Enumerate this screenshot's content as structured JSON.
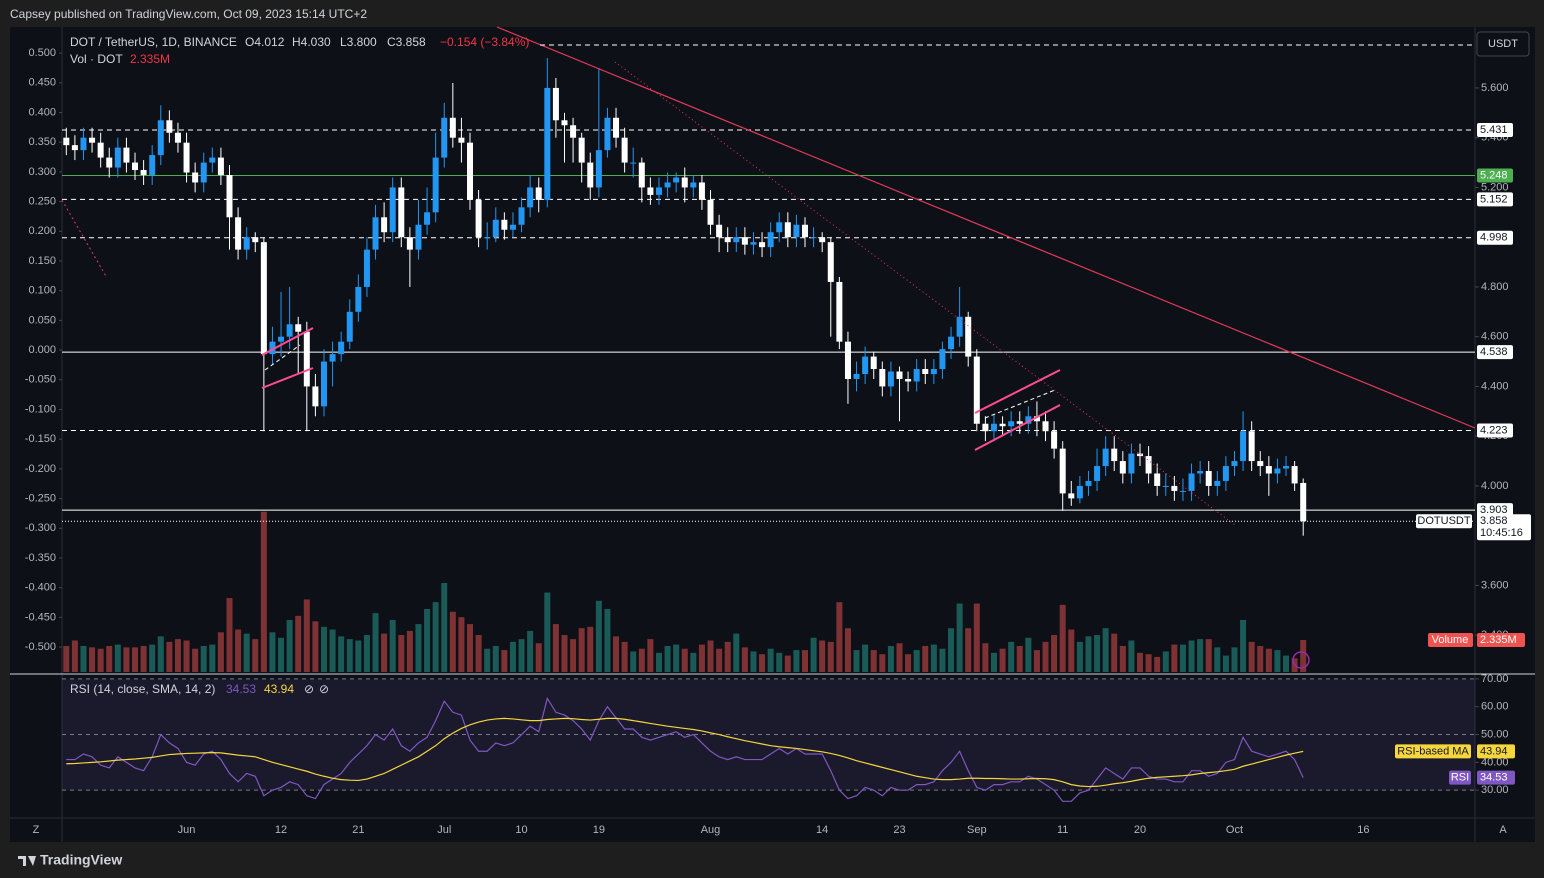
{
  "header": {
    "publisher": "Capsey published on TradingView.com, Oct 09, 2023 15:14 UTC+2",
    "brand": "TradingView"
  },
  "chart_data": {
    "type": "candlestick",
    "title": "DOT / TetherUS, 1D, BINANCE",
    "ohlc_label": [
      "O4.012",
      "H4.030",
      "L3.800",
      "C3.858"
    ],
    "change_label": "−0.154 (−3.84%)",
    "currency": "USDT",
    "symbol": "DOTUSDT",
    "countdown": "10:45:16",
    "corner_buttons": [
      "Z",
      "A"
    ],
    "up_color": "#2196f3",
    "down_color": "#ffffff",
    "open": [
      5.4,
      5.37,
      5.35,
      5.4,
      5.38,
      5.32,
      5.28,
      5.36,
      5.3,
      5.27,
      5.25,
      5.33,
      5.47,
      5.42,
      5.38,
      5.26,
      5.22,
      5.3,
      5.32,
      5.25,
      5.08,
      4.95,
      5.0,
      4.98,
      4.53,
      4.58,
      4.6,
      4.65,
      4.62,
      4.4,
      4.32,
      4.5,
      4.53,
      4.58,
      4.7,
      4.8,
      4.95,
      5.08,
      5.02,
      5.2,
      5.0,
      4.95,
      5.05,
      5.1,
      5.32,
      5.48,
      5.4,
      5.38,
      5.15,
      5.0,
      5.0,
      5.07,
      5.03,
      5.05,
      5.12,
      5.2,
      5.15,
      5.6,
      5.47,
      5.45,
      5.4,
      5.3,
      5.2,
      5.35,
      5.48,
      5.4,
      5.3,
      5.3,
      5.2,
      5.17,
      5.2,
      5.22,
      5.24,
      5.2,
      5.22,
      5.15,
      5.05,
      5.0,
      4.98,
      5.0,
      4.97,
      4.98,
      4.96,
      5.02,
      5.06,
      5.0,
      5.05,
      5.0,
      5.0,
      4.98,
      4.82,
      4.58,
      4.43,
      4.45,
      4.52,
      4.47,
      4.4,
      4.46,
      4.43,
      4.42,
      4.47,
      4.45,
      4.47,
      4.55,
      4.6,
      4.68,
      4.52,
      4.25,
      4.22,
      4.25,
      4.24,
      4.26,
      4.25,
      4.28,
      4.26,
      4.22,
      4.15,
      3.97,
      3.95,
      4.0,
      4.02,
      4.08,
      4.15,
      4.1,
      4.05,
      4.13,
      4.12,
      4.05,
      4.0,
      4.0,
      3.98,
      3.98,
      4.05,
      4.06,
      4.0,
      4.02,
      4.08,
      4.1,
      4.22,
      4.1,
      4.08,
      4.05,
      4.07,
      4.08,
      4.012
    ],
    "high": [
      5.44,
      5.41,
      5.44,
      5.44,
      5.42,
      5.36,
      5.4,
      5.4,
      5.34,
      5.31,
      5.37,
      5.53,
      5.51,
      5.46,
      5.42,
      5.3,
      5.34,
      5.36,
      5.36,
      5.29,
      5.12,
      5.04,
      5.02,
      5.0,
      4.64,
      4.78,
      4.8,
      4.68,
      4.66,
      4.45,
      4.55,
      4.58,
      4.62,
      4.75,
      4.85,
      5.0,
      5.13,
      5.14,
      5.24,
      5.24,
      5.04,
      5.15,
      5.2,
      5.42,
      5.54,
      5.62,
      5.48,
      5.42,
      5.19,
      5.06,
      5.12,
      5.1,
      5.1,
      5.16,
      5.25,
      5.24,
      5.72,
      5.64,
      5.5,
      5.48,
      5.42,
      5.34,
      5.68,
      5.52,
      5.52,
      5.44,
      5.36,
      5.32,
      5.24,
      5.24,
      5.26,
      5.26,
      5.28,
      5.25,
      5.25,
      5.19,
      5.09,
      5.04,
      5.04,
      5.04,
      5.02,
      5.02,
      5.06,
      5.1,
      5.1,
      5.09,
      5.08,
      5.04,
      5.02,
      5.0,
      4.84,
      4.62,
      4.5,
      4.56,
      4.54,
      4.5,
      4.5,
      4.48,
      4.46,
      4.51,
      4.51,
      4.51,
      4.58,
      4.64,
      4.8,
      4.7,
      4.55,
      4.28,
      4.29,
      4.28,
      4.3,
      4.3,
      4.32,
      4.34,
      4.3,
      4.26,
      4.18,
      4.02,
      4.04,
      4.06,
      4.15,
      4.2,
      4.2,
      4.14,
      4.17,
      4.17,
      4.16,
      4.09,
      4.05,
      4.04,
      4.03,
      4.09,
      4.1,
      4.1,
      4.06,
      4.12,
      4.14,
      4.3,
      4.26,
      4.14,
      4.12,
      4.11,
      4.12,
      4.1,
      4.03
    ],
    "low": [
      5.33,
      5.31,
      5.31,
      5.34,
      5.28,
      5.24,
      5.24,
      5.26,
      5.23,
      5.21,
      5.21,
      5.29,
      5.38,
      5.34,
      5.22,
      5.18,
      5.18,
      5.26,
      5.21,
      4.95,
      4.91,
      4.91,
      4.94,
      4.22,
      4.49,
      4.52,
      4.55,
      4.45,
      4.22,
      4.28,
      4.28,
      4.4,
      4.5,
      4.55,
      4.66,
      4.76,
      4.91,
      4.98,
      4.98,
      4.96,
      4.8,
      4.91,
      5.01,
      5.06,
      5.28,
      5.36,
      5.3,
      5.11,
      4.96,
      4.95,
      4.98,
      4.99,
      5.0,
      5.02,
      5.08,
      5.1,
      5.12,
      5.4,
      5.3,
      5.3,
      5.22,
      5.15,
      5.16,
      5.32,
      5.36,
      5.26,
      5.24,
      5.14,
      5.13,
      5.13,
      5.16,
      5.18,
      5.14,
      5.16,
      5.11,
      5.01,
      4.94,
      4.94,
      4.94,
      4.93,
      4.93,
      4.92,
      4.92,
      4.98,
      4.96,
      4.96,
      4.96,
      4.96,
      4.94,
      4.6,
      4.55,
      4.33,
      4.38,
      4.41,
      4.43,
      4.36,
      4.36,
      4.26,
      4.38,
      4.38,
      4.41,
      4.41,
      4.43,
      4.51,
      4.56,
      4.48,
      4.22,
      4.18,
      4.18,
      4.2,
      4.2,
      4.21,
      4.21,
      4.2,
      4.18,
      4.11,
      3.9,
      3.92,
      3.93,
      3.96,
      3.98,
      4.04,
      4.06,
      4.01,
      4.01,
      4.08,
      4.01,
      3.96,
      3.96,
      3.94,
      3.94,
      3.94,
      4.01,
      3.96,
      3.96,
      3.98,
      4.04,
      4.06,
      4.06,
      4.04,
      3.96,
      4.01,
      4.04,
      3.98,
      3.8
    ],
    "close": [
      5.37,
      5.35,
      5.4,
      5.38,
      5.32,
      5.28,
      5.36,
      5.3,
      5.27,
      5.25,
      5.33,
      5.47,
      5.42,
      5.38,
      5.26,
      5.22,
      5.3,
      5.32,
      5.25,
      5.08,
      4.95,
      5.0,
      4.98,
      4.53,
      4.58,
      4.6,
      4.65,
      4.62,
      4.4,
      4.32,
      4.5,
      4.53,
      4.58,
      4.7,
      4.8,
      4.95,
      5.08,
      5.02,
      5.2,
      5.0,
      4.95,
      5.05,
      5.1,
      5.32,
      5.48,
      5.4,
      5.38,
      5.15,
      5.0,
      5.0,
      5.07,
      5.03,
      5.05,
      5.12,
      5.2,
      5.15,
      5.6,
      5.47,
      5.45,
      5.4,
      5.3,
      5.2,
      5.35,
      5.48,
      5.4,
      5.3,
      5.3,
      5.2,
      5.17,
      5.2,
      5.22,
      5.24,
      5.2,
      5.22,
      5.15,
      5.05,
      5.0,
      4.98,
      5.0,
      4.97,
      4.98,
      4.96,
      5.02,
      5.06,
      5.0,
      5.05,
      5.0,
      5.0,
      4.98,
      4.82,
      4.58,
      4.43,
      4.45,
      4.52,
      4.47,
      4.4,
      4.46,
      4.43,
      4.42,
      4.47,
      4.45,
      4.47,
      4.55,
      4.6,
      4.68,
      4.52,
      4.25,
      4.22,
      4.25,
      4.24,
      4.26,
      4.25,
      4.28,
      4.26,
      4.22,
      4.15,
      3.97,
      3.95,
      4.0,
      4.02,
      4.08,
      4.15,
      4.1,
      4.05,
      4.13,
      4.12,
      4.05,
      4.0,
      4.0,
      3.98,
      3.98,
      4.05,
      4.06,
      4.0,
      4.02,
      4.08,
      4.1,
      4.22,
      4.1,
      4.08,
      4.05,
      4.07,
      4.08,
      4.01,
      3.858
    ],
    "xlim": [
      -0.5,
      164
    ],
    "xticks": [
      {
        "value": 14,
        "label": "Jun"
      },
      {
        "value": 25,
        "label": "12"
      },
      {
        "value": 34,
        "label": "21"
      },
      {
        "value": 44,
        "label": "Jul"
      },
      {
        "value": 53,
        "label": "10"
      },
      {
        "value": 62,
        "label": "19"
      },
      {
        "value": 75,
        "label": "Aug"
      },
      {
        "value": 88,
        "label": "14"
      },
      {
        "value": 97,
        "label": "23"
      },
      {
        "value": 106,
        "label": "Sep"
      },
      {
        "value": 116,
        "label": "11"
      },
      {
        "value": 125,
        "label": "20"
      },
      {
        "value": 136,
        "label": "Oct"
      },
      {
        "value": 151,
        "label": "16"
      }
    ],
    "ylim": [
      3.252,
      5.845
    ],
    "yticks": [
      {
        "value": 5.6,
        "label": "5.600"
      },
      {
        "value": 5.4,
        "label": "5.400"
      },
      {
        "value": 5.2,
        "label": "5.200"
      },
      {
        "value": 4.8,
        "label": "4.800"
      },
      {
        "value": 4.6,
        "label": "4.600"
      },
      {
        "value": 4.4,
        "label": "4.400"
      },
      {
        "value": 4.2,
        "label": "4.200"
      },
      {
        "value": 4.0,
        "label": "4.000"
      },
      {
        "value": 3.6,
        "label": "3.600"
      },
      {
        "value": 3.4,
        "label": "3.400"
      }
    ],
    "levels": [
      {
        "value": 5.431,
        "color": "#ffffff",
        "style": "dashed"
      },
      {
        "value": 5.248,
        "color": "#4caf50",
        "style": "solid"
      },
      {
        "value": 5.152,
        "color": "#ffffff",
        "style": "dashed"
      },
      {
        "value": 4.998,
        "color": "#ffffff",
        "style": "dashed"
      },
      {
        "value": 4.538,
        "color": "#ffffff",
        "style": "solid"
      },
      {
        "value": 4.223,
        "color": "#ffffff",
        "style": "dashed"
      },
      {
        "value": 3.903,
        "color": "#ffffff",
        "style": "solid"
      }
    ],
    "left_ylim": [
      -0.542,
      0.544
    ],
    "left_yticks": [
      {
        "value": 0.5,
        "label": "0.500"
      },
      {
        "value": 0.45,
        "label": "0.450"
      },
      {
        "value": 0.4,
        "label": "0.400"
      },
      {
        "value": 0.35,
        "label": "0.350"
      },
      {
        "value": 0.3,
        "label": "0.300"
      },
      {
        "value": 0.25,
        "label": "0.250"
      },
      {
        "value": 0.2,
        "label": "0.200"
      },
      {
        "value": 0.15,
        "label": "0.150"
      },
      {
        "value": 0.1,
        "label": "0.100"
      },
      {
        "value": 0.05,
        "label": "0.050"
      },
      {
        "value": 0,
        "label": "0.000"
      },
      {
        "value": -0.05,
        "label": "-0.050"
      },
      {
        "value": -0.1,
        "label": "-0.100"
      },
      {
        "value": -0.15,
        "label": "-0.150"
      },
      {
        "value": -0.2,
        "label": "-0.200"
      },
      {
        "value": -0.25,
        "label": "-0.250"
      },
      {
        "value": -0.3,
        "label": "-0.300"
      },
      {
        "value": -0.35,
        "label": "-0.350"
      },
      {
        "value": -0.4,
        "label": "-0.400"
      },
      {
        "value": -0.45,
        "label": "-0.450"
      },
      {
        "value": -0.5,
        "label": "-0.500"
      }
    ],
    "volume": {
      "name": "Vol · DOT",
      "legend_label": "Volume",
      "last_label": "2.335M",
      "ylim": [
        0,
        47.1
      ],
      "up_color": "#26a69a",
      "down_color": "#ef5350",
      "values": [
        1.9,
        2.3,
        1.9,
        1.8,
        1.7,
        1.9,
        2.0,
        1.8,
        1.8,
        1.9,
        2.0,
        2.6,
        2.2,
        2.4,
        2.3,
        1.7,
        1.9,
        2.0,
        2.9,
        5.4,
        3.1,
        2.8,
        2.4,
        11.7,
        2.9,
        2.5,
        3.8,
        4.1,
        5.3,
        3.7,
        3.3,
        3.1,
        2.6,
        2.4,
        2.3,
        2.7,
        4.3,
        2.8,
        3.8,
        2.7,
        3.0,
        3.5,
        4.6,
        5.1,
        6.5,
        4.4,
        4.0,
        3.5,
        2.7,
        1.7,
        1.9,
        1.6,
        2.2,
        2.4,
        3.0,
        2.1,
        5.8,
        3.5,
        2.7,
        2.4,
        3.2,
        3.3,
        5.2,
        4.6,
        2.6,
        2.2,
        1.5,
        1.7,
        2.4,
        1.4,
        1.9,
        2.0,
        1.7,
        1.4,
        2.0,
        2.3,
        1.7,
        2.2,
        2.8,
        1.8,
        1.5,
        1.3,
        1.7,
        1.4,
        1.2,
        1.6,
        1.6,
        2.5,
        2.3,
        2.2,
        5.1,
        3.2,
        1.6,
        2.0,
        1.6,
        1.3,
        1.9,
        2.1,
        1.3,
        1.6,
        1.9,
        2.0,
        1.7,
        3.2,
        5.0,
        3.2,
        5.0,
        2.1,
        1.4,
        1.7,
        2.2,
        1.9,
        2.5,
        1.6,
        2.2,
        2.7,
        4.9,
        3.1,
        2.2,
        2.6,
        2.7,
        3.2,
        2.8,
        1.9,
        2.3,
        1.4,
        1.3,
        1.1,
        1.5,
        2.0,
        2.0,
        2.3,
        2.4,
        2.4,
        1.8,
        1.2,
        1.8,
        3.8,
        2.2,
        1.9,
        1.7,
        1.6,
        1.2,
        1.0,
        2.335
      ]
    },
    "rsi": {
      "title": "RSI (14, close, SMA, 14, 2)",
      "icons": [
        "⊘",
        "⊘"
      ],
      "ylim": [
        20,
        71.4
      ],
      "bands": [
        70,
        50,
        30
      ],
      "yticks": [
        {
          "value": 70,
          "label": "70.00"
        },
        {
          "value": 60,
          "label": "60.00"
        },
        {
          "value": 50,
          "label": "50.00"
        },
        {
          "value": 40,
          "label": "40.00"
        },
        {
          "value": 30,
          "label": "30.00"
        }
      ],
      "series": [
        {
          "name": "RSI",
          "color": "#7e57c2",
          "values": [
            41,
            41,
            43,
            42,
            39,
            38,
            42,
            40,
            38,
            37,
            42,
            50,
            47,
            45,
            40,
            39,
            43,
            44,
            41,
            36,
            33,
            36,
            35,
            28,
            30,
            31,
            33,
            32,
            28,
            27,
            32,
            34,
            36,
            40,
            43,
            46,
            50,
            48,
            52,
            46,
            44,
            47,
            49,
            55,
            62,
            58,
            57,
            48,
            44,
            44,
            47,
            46,
            47,
            50,
            53,
            51,
            63,
            58,
            57,
            55,
            52,
            48,
            55,
            60,
            56,
            52,
            52,
            49,
            48,
            49,
            50,
            51,
            49,
            50,
            47,
            44,
            42,
            41,
            42,
            41,
            41,
            41,
            43,
            45,
            43,
            45,
            43,
            43,
            43,
            37,
            30,
            27,
            28,
            31,
            30,
            28,
            31,
            30,
            30,
            32,
            32,
            33,
            37,
            40,
            44,
            37,
            31,
            30,
            32,
            32,
            33,
            33,
            35,
            34,
            32,
            30,
            26,
            26,
            29,
            30,
            34,
            38,
            36,
            34,
            38,
            38,
            35,
            34,
            34,
            33,
            33,
            37,
            37,
            35,
            36,
            40,
            41,
            49,
            44,
            43,
            42,
            43,
            44,
            41,
            34.53
          ]
        },
        {
          "name": "RSI-based MA",
          "color": "#f5d63d",
          "values": [
            39.5,
            39.6,
            39.8,
            40,
            40.2,
            40.5,
            40.8,
            41,
            41.2,
            41.5,
            41.8,
            42.3,
            42.8,
            43,
            43.2,
            43.3,
            43.4,
            43.5,
            43.4,
            43,
            42.6,
            42.3,
            42,
            41,
            40,
            39.2,
            38.4,
            37.6,
            36.8,
            35.8,
            35,
            34.3,
            33.8,
            33.6,
            33.5,
            34,
            35,
            36,
            37.5,
            39,
            40.5,
            42,
            44,
            46,
            48.5,
            50.5,
            52.2,
            53.5,
            54.5,
            55.2,
            55.6,
            55.8,
            55.6,
            55.3,
            55,
            55,
            55.4,
            55.6,
            55.8,
            55.7,
            55.4,
            55.2,
            55.5,
            55.8,
            55.8,
            55.5,
            55,
            54.5,
            54,
            53.5,
            53,
            52.6,
            52.2,
            51.8,
            51.3,
            50.6,
            50,
            49.2,
            48.5,
            47.8,
            47.2,
            46.6,
            46,
            45.6,
            45.3,
            45,
            44.6,
            44.2,
            43.8,
            43.2,
            42.5,
            41.6,
            40.6,
            39.8,
            39,
            38.2,
            37.4,
            36.6,
            35.8,
            35,
            34.5,
            34,
            33.8,
            33.8,
            34,
            34.3,
            34.3,
            34.2,
            34.2,
            34.1,
            34,
            34,
            34.1,
            34.2,
            34.1,
            33.8,
            33,
            32,
            31.5,
            31.3,
            31.4,
            31.8,
            32.3,
            32.7,
            33.2,
            33.8,
            34.3,
            34.6,
            34.8,
            35,
            35.2,
            35.5,
            36,
            36.3,
            36.6,
            37,
            37.5,
            38.6,
            39.4,
            40.2,
            41,
            41.8,
            42.6,
            43.3,
            43.94
          ]
        }
      ]
    }
  }
}
